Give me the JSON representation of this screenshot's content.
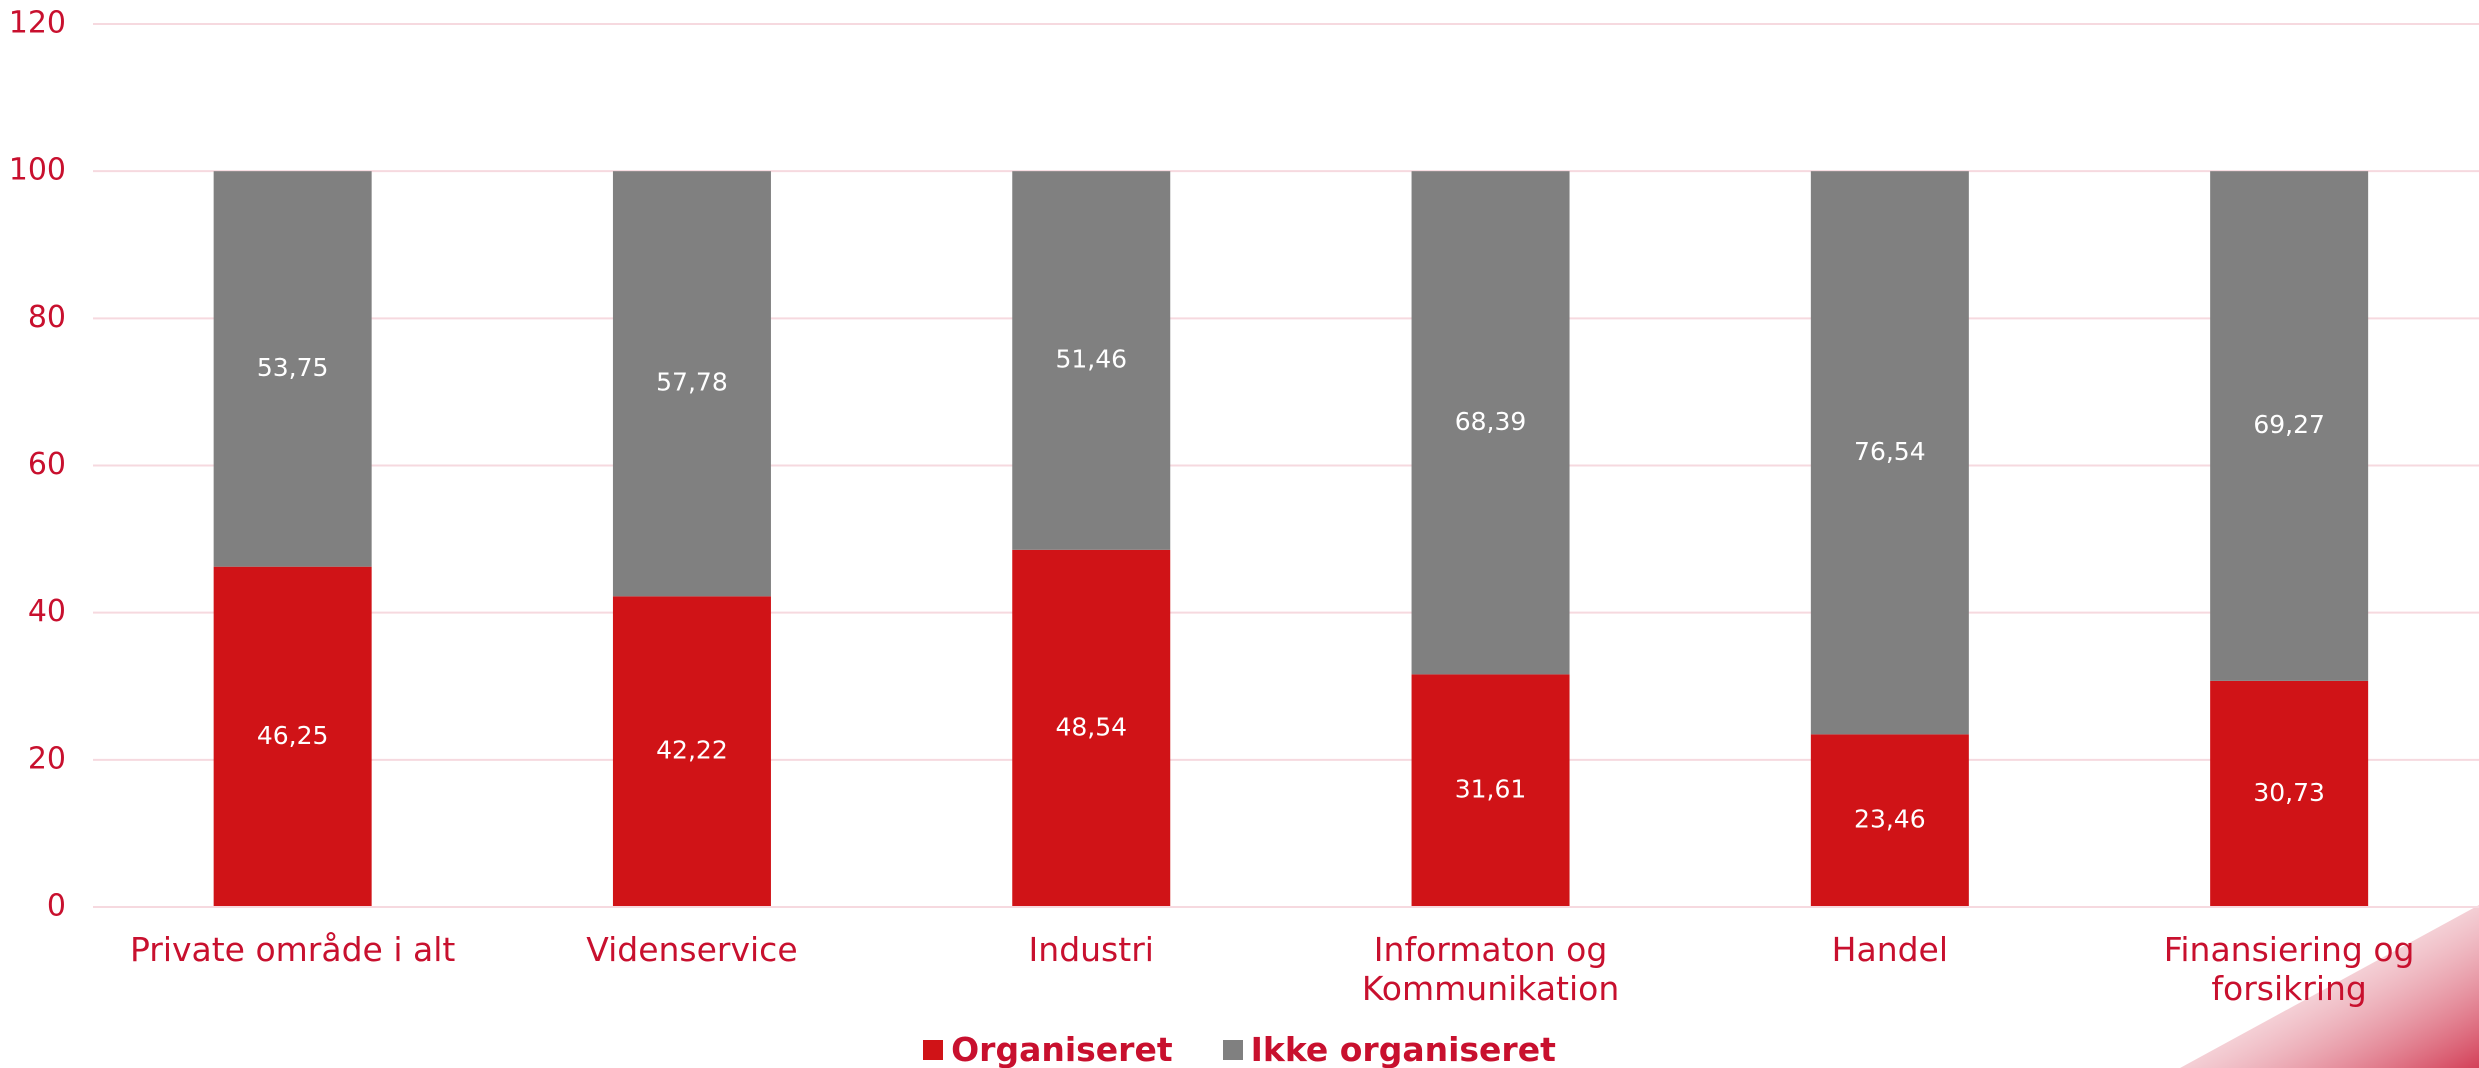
{
  "chart_data": {
    "type": "stacked_bar",
    "categories": [
      "Private område i alt",
      "Videnservice",
      "Industri",
      "Informaton og\nKommunikation",
      "Handel",
      "Finansiering og\nforsikring"
    ],
    "series": [
      {
        "name": "Organiseret",
        "color": "#d01317",
        "values": [
          46.25,
          42.22,
          48.54,
          31.61,
          23.46,
          30.73
        ],
        "value_labels": [
          "46,25",
          "42,22",
          "48,54",
          "31,61",
          "23,46",
          "30,73"
        ]
      },
      {
        "name": "Ikke organiseret",
        "color": "#808080",
        "values": [
          53.75,
          57.78,
          51.46,
          68.39,
          76.54,
          69.27
        ],
        "value_labels": [
          "53,75",
          "57,78",
          "51,46",
          "68,39",
          "76,54",
          "69,27"
        ]
      }
    ],
    "ylim": [
      0,
      120
    ],
    "yticks": [
      0,
      20,
      40,
      60,
      80,
      100,
      120
    ],
    "grid": true,
    "legend": "bottom"
  }
}
